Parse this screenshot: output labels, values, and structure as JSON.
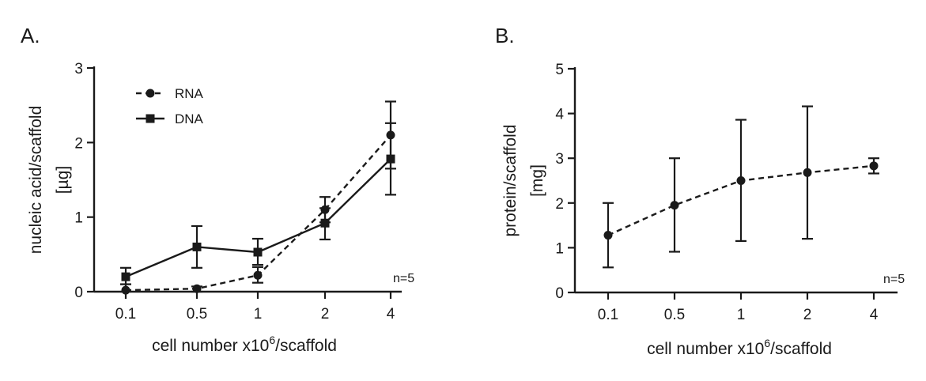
{
  "chart_data": [
    {
      "panel": "A.",
      "type": "line",
      "categories": [
        "0.1",
        "0.5",
        "1",
        "2",
        "4"
      ],
      "ylabel_line1": "nucleic acid/scaffold",
      "ylabel_line2": "[µg]",
      "xlabel_main": "cell number x10",
      "xlabel_sup": "6",
      "xlabel_end": "/scaffold",
      "ylim": [
        0,
        3
      ],
      "yticks": [
        0,
        1,
        2,
        3
      ],
      "note": "n=5",
      "legend_position": "top-left",
      "series": [
        {
          "name": "RNA",
          "marker": "circle",
          "dash": "dashed",
          "values": [
            0.02,
            0.04,
            0.22,
            1.1,
            2.1
          ],
          "err_low": [
            0.0,
            0.0,
            0.12,
            0.93,
            1.65
          ],
          "err_high": [
            0.1,
            0.07,
            0.33,
            1.27,
            2.55
          ]
        },
        {
          "name": "DNA",
          "marker": "square",
          "dash": "solid",
          "values": [
            0.2,
            0.6,
            0.53,
            0.92,
            1.78
          ],
          "err_low": [
            0.1,
            0.32,
            0.36,
            0.7,
            1.3
          ],
          "err_high": [
            0.32,
            0.88,
            0.71,
            1.12,
            2.26
          ]
        }
      ]
    },
    {
      "panel": "B.",
      "type": "line",
      "categories": [
        "0.1",
        "0.5",
        "1",
        "2",
        "4"
      ],
      "ylabel_line1": "protein/scaffold",
      "ylabel_line2": "[mg]",
      "xlabel_main": "cell number x10",
      "xlabel_sup": "6",
      "xlabel_end": "/scaffold",
      "ylim": [
        0,
        5
      ],
      "yticks": [
        0,
        1,
        2,
        3,
        4,
        5
      ],
      "note": "n=5",
      "series": [
        {
          "name": "protein",
          "marker": "circle",
          "dash": "dashed",
          "values": [
            1.28,
            1.95,
            2.5,
            2.68,
            2.83
          ],
          "err_low": [
            0.56,
            0.91,
            1.15,
            1.2,
            2.66
          ],
          "err_high": [
            2.0,
            3.0,
            3.86,
            4.16,
            3.0
          ]
        }
      ]
    }
  ]
}
